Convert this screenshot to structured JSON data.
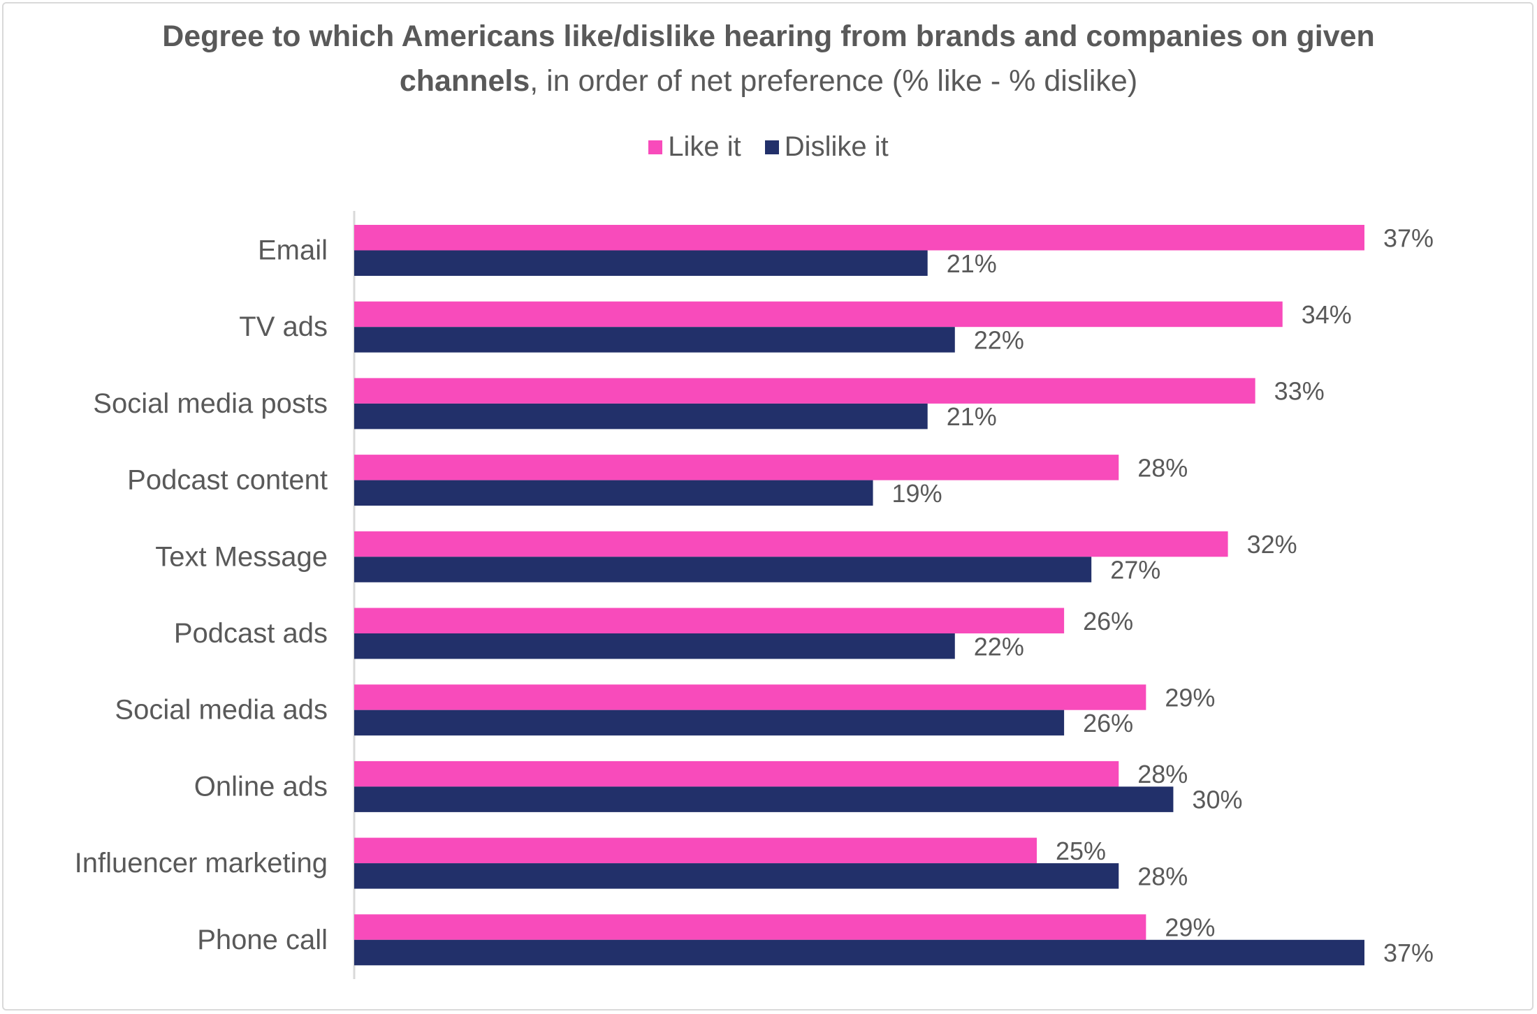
{
  "title_bold_1": "Degree to which Americans like/dislike hearing from brands and companies on given",
  "title_bold_2": "channels",
  "title_rest": ", in order of net preference (% like - % dislike)",
  "colors": {
    "like": "#f84bbb",
    "dislike": "#22306a",
    "axis": "#d9d9d9",
    "text": "#595959"
  },
  "chart_data": {
    "type": "bar",
    "orientation": "horizontal",
    "title": "Degree to which Americans like/dislike hearing from brands and companies on given channels, in order of net preference (% like - % dislike)",
    "xlabel": "",
    "ylabel": "",
    "xlim": [
      0,
      37
    ],
    "grid": false,
    "legend_position": "top",
    "categories": [
      "Email",
      "TV ads",
      "Social media posts",
      "Podcast content",
      "Text Message",
      "Podcast ads",
      "Social media ads",
      "Online ads",
      "Influencer marketing",
      "Phone call"
    ],
    "series": [
      {
        "name": "Like it",
        "values": [
          37,
          34,
          33,
          28,
          32,
          26,
          29,
          28,
          25,
          29
        ],
        "labels": [
          "37%",
          "34%",
          "33%",
          "28%",
          "32%",
          "26%",
          "29%",
          "28%",
          "25%",
          "29%"
        ]
      },
      {
        "name": "Dislike it",
        "values": [
          21,
          22,
          21,
          19,
          27,
          22,
          26,
          30,
          28,
          37
        ],
        "labels": [
          "21%",
          "22%",
          "21%",
          "19%",
          "27%",
          "22%",
          "26%",
          "30%",
          "28%",
          "37%"
        ]
      }
    ]
  }
}
